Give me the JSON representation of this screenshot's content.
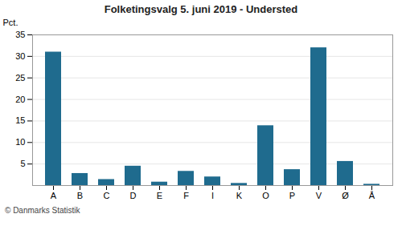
{
  "chart_data": {
    "type": "bar",
    "title": "Folketingsvalg 5. juni 2019 - Understed",
    "categories": [
      "A",
      "B",
      "C",
      "D",
      "E",
      "F",
      "I",
      "K",
      "O",
      "P",
      "V",
      "Ø",
      "Å"
    ],
    "values": [
      31.0,
      2.8,
      1.4,
      4.5,
      0.8,
      3.3,
      2.0,
      0.5,
      13.9,
      3.7,
      32.0,
      5.6,
      0.3
    ],
    "color": "#1F6B8E",
    "ylabel": "Pct.",
    "ylim": [
      0,
      35
    ],
    "yticks": [
      5,
      10,
      15,
      20,
      25,
      30,
      35
    ],
    "grid": true,
    "footer": "© Danmarks Statistik"
  }
}
